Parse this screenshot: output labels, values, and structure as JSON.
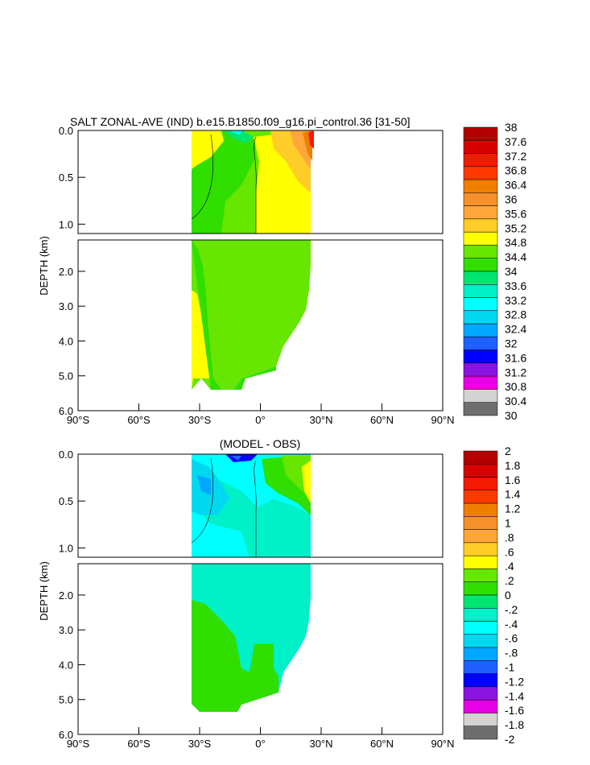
{
  "chart_data": [
    {
      "type": "contour",
      "title": "SALT ZONAL-AVE (IND) b.e15.B1850.f09_g16.pi_control.36 [31-50]",
      "ylabel": "DEPTH (km)",
      "xlabel": "",
      "xlim": [
        -90,
        90
      ],
      "x_ticks": [
        -90,
        -60,
        -30,
        0,
        30,
        60,
        90
      ],
      "x_tick_labels": [
        "90°S",
        "60°S",
        "30°S",
        "0°",
        "30°N",
        "60°N",
        "90°N"
      ],
      "upper_panel": {
        "ylim": [
          0,
          1.1
        ],
        "y_ticks": [
          0,
          0.5,
          1.0
        ],
        "y_tick_labels": [
          "0.0",
          "0.5",
          "1.0"
        ]
      },
      "lower_panel": {
        "ylim": [
          1.1,
          6.0
        ],
        "y_ticks": [
          2,
          3,
          4,
          5,
          6
        ],
        "y_tick_labels": [
          "2.0",
          "3.0",
          "4.0",
          "5.0",
          "6.0"
        ]
      },
      "colorbar": {
        "labels": [
          "38",
          "37.6",
          "37.2",
          "36.8",
          "36.4",
          "36",
          "35.6",
          "35.2",
          "34.8",
          "34.4",
          "34",
          "33.6",
          "33.2",
          "32.8",
          "32.4",
          "32",
          "31.6",
          "31.2",
          "30.8",
          "30.4",
          "30"
        ],
        "colors": [
          "#b50000",
          "#d90000",
          "#f21a00",
          "#ff3a00",
          "#ef7f00",
          "#f6902b",
          "#ffa63a",
          "#ffcd28",
          "#ffff00",
          "#66e600",
          "#30de00",
          "#00e56e",
          "#00f0c8",
          "#00ffff",
          "#00d8f0",
          "#00a6ff",
          "#2060ff",
          "#0000ff",
          "#8a14e0",
          "#e600e6",
          "#d3d3d3",
          "#6e6e6e"
        ]
      },
      "field_colors": {
        "background_fill": "#66e600",
        "high_salinity": "#ffff00",
        "mid_salinity": "#30de00",
        "very_high": "#ffcd28",
        "peak": "#ef7f00",
        "low": "#00f0c8"
      }
    },
    {
      "type": "contour",
      "title": "(MODEL - OBS)",
      "ylabel": "DEPTH (km)",
      "xlabel": "",
      "xlim": [
        -90,
        90
      ],
      "x_ticks": [
        -90,
        -60,
        -30,
        0,
        30,
        60,
        90
      ],
      "x_tick_labels": [
        "90°S",
        "60°S",
        "30°S",
        "0°",
        "30°N",
        "60°N",
        "90°N"
      ],
      "upper_panel": {
        "ylim": [
          0,
          1.1
        ],
        "y_ticks": [
          0,
          0.5,
          1.0
        ],
        "y_tick_labels": [
          "0.0",
          "0.5",
          "1.0"
        ]
      },
      "lower_panel": {
        "ylim": [
          1.1,
          6.0
        ],
        "y_ticks": [
          2,
          3,
          4,
          5,
          6
        ],
        "y_tick_labels": [
          "2.0",
          "3.0",
          "4.0",
          "5.0",
          "6.0"
        ]
      },
      "colorbar": {
        "labels": [
          "2",
          "1.8",
          "1.6",
          "1.4",
          "1.2",
          "1",
          ".8",
          ".6",
          ".4",
          ".2",
          "0",
          "-.2",
          "-.4",
          "-.6",
          "-.8",
          "-1",
          "-1.2",
          "-1.4",
          "-1.6",
          "-1.8",
          "-2"
        ],
        "colors": [
          "#b50000",
          "#d90000",
          "#f21a00",
          "#ff3a00",
          "#ef7f00",
          "#f6902b",
          "#ffa63a",
          "#ffcd28",
          "#ffff00",
          "#66e600",
          "#30de00",
          "#00e56e",
          "#00f0c8",
          "#00ffff",
          "#00d8f0",
          "#00a6ff",
          "#2060ff",
          "#0000ff",
          "#8a14e0",
          "#e600e6",
          "#d3d3d3",
          "#6e6e6e"
        ]
      },
      "field_colors": {
        "background_fill": "#00f0c8",
        "positive": "#30de00",
        "strong_positive": "#ffff00",
        "negative": "#00ffff",
        "strong_negative": "#00d8f0"
      }
    }
  ]
}
